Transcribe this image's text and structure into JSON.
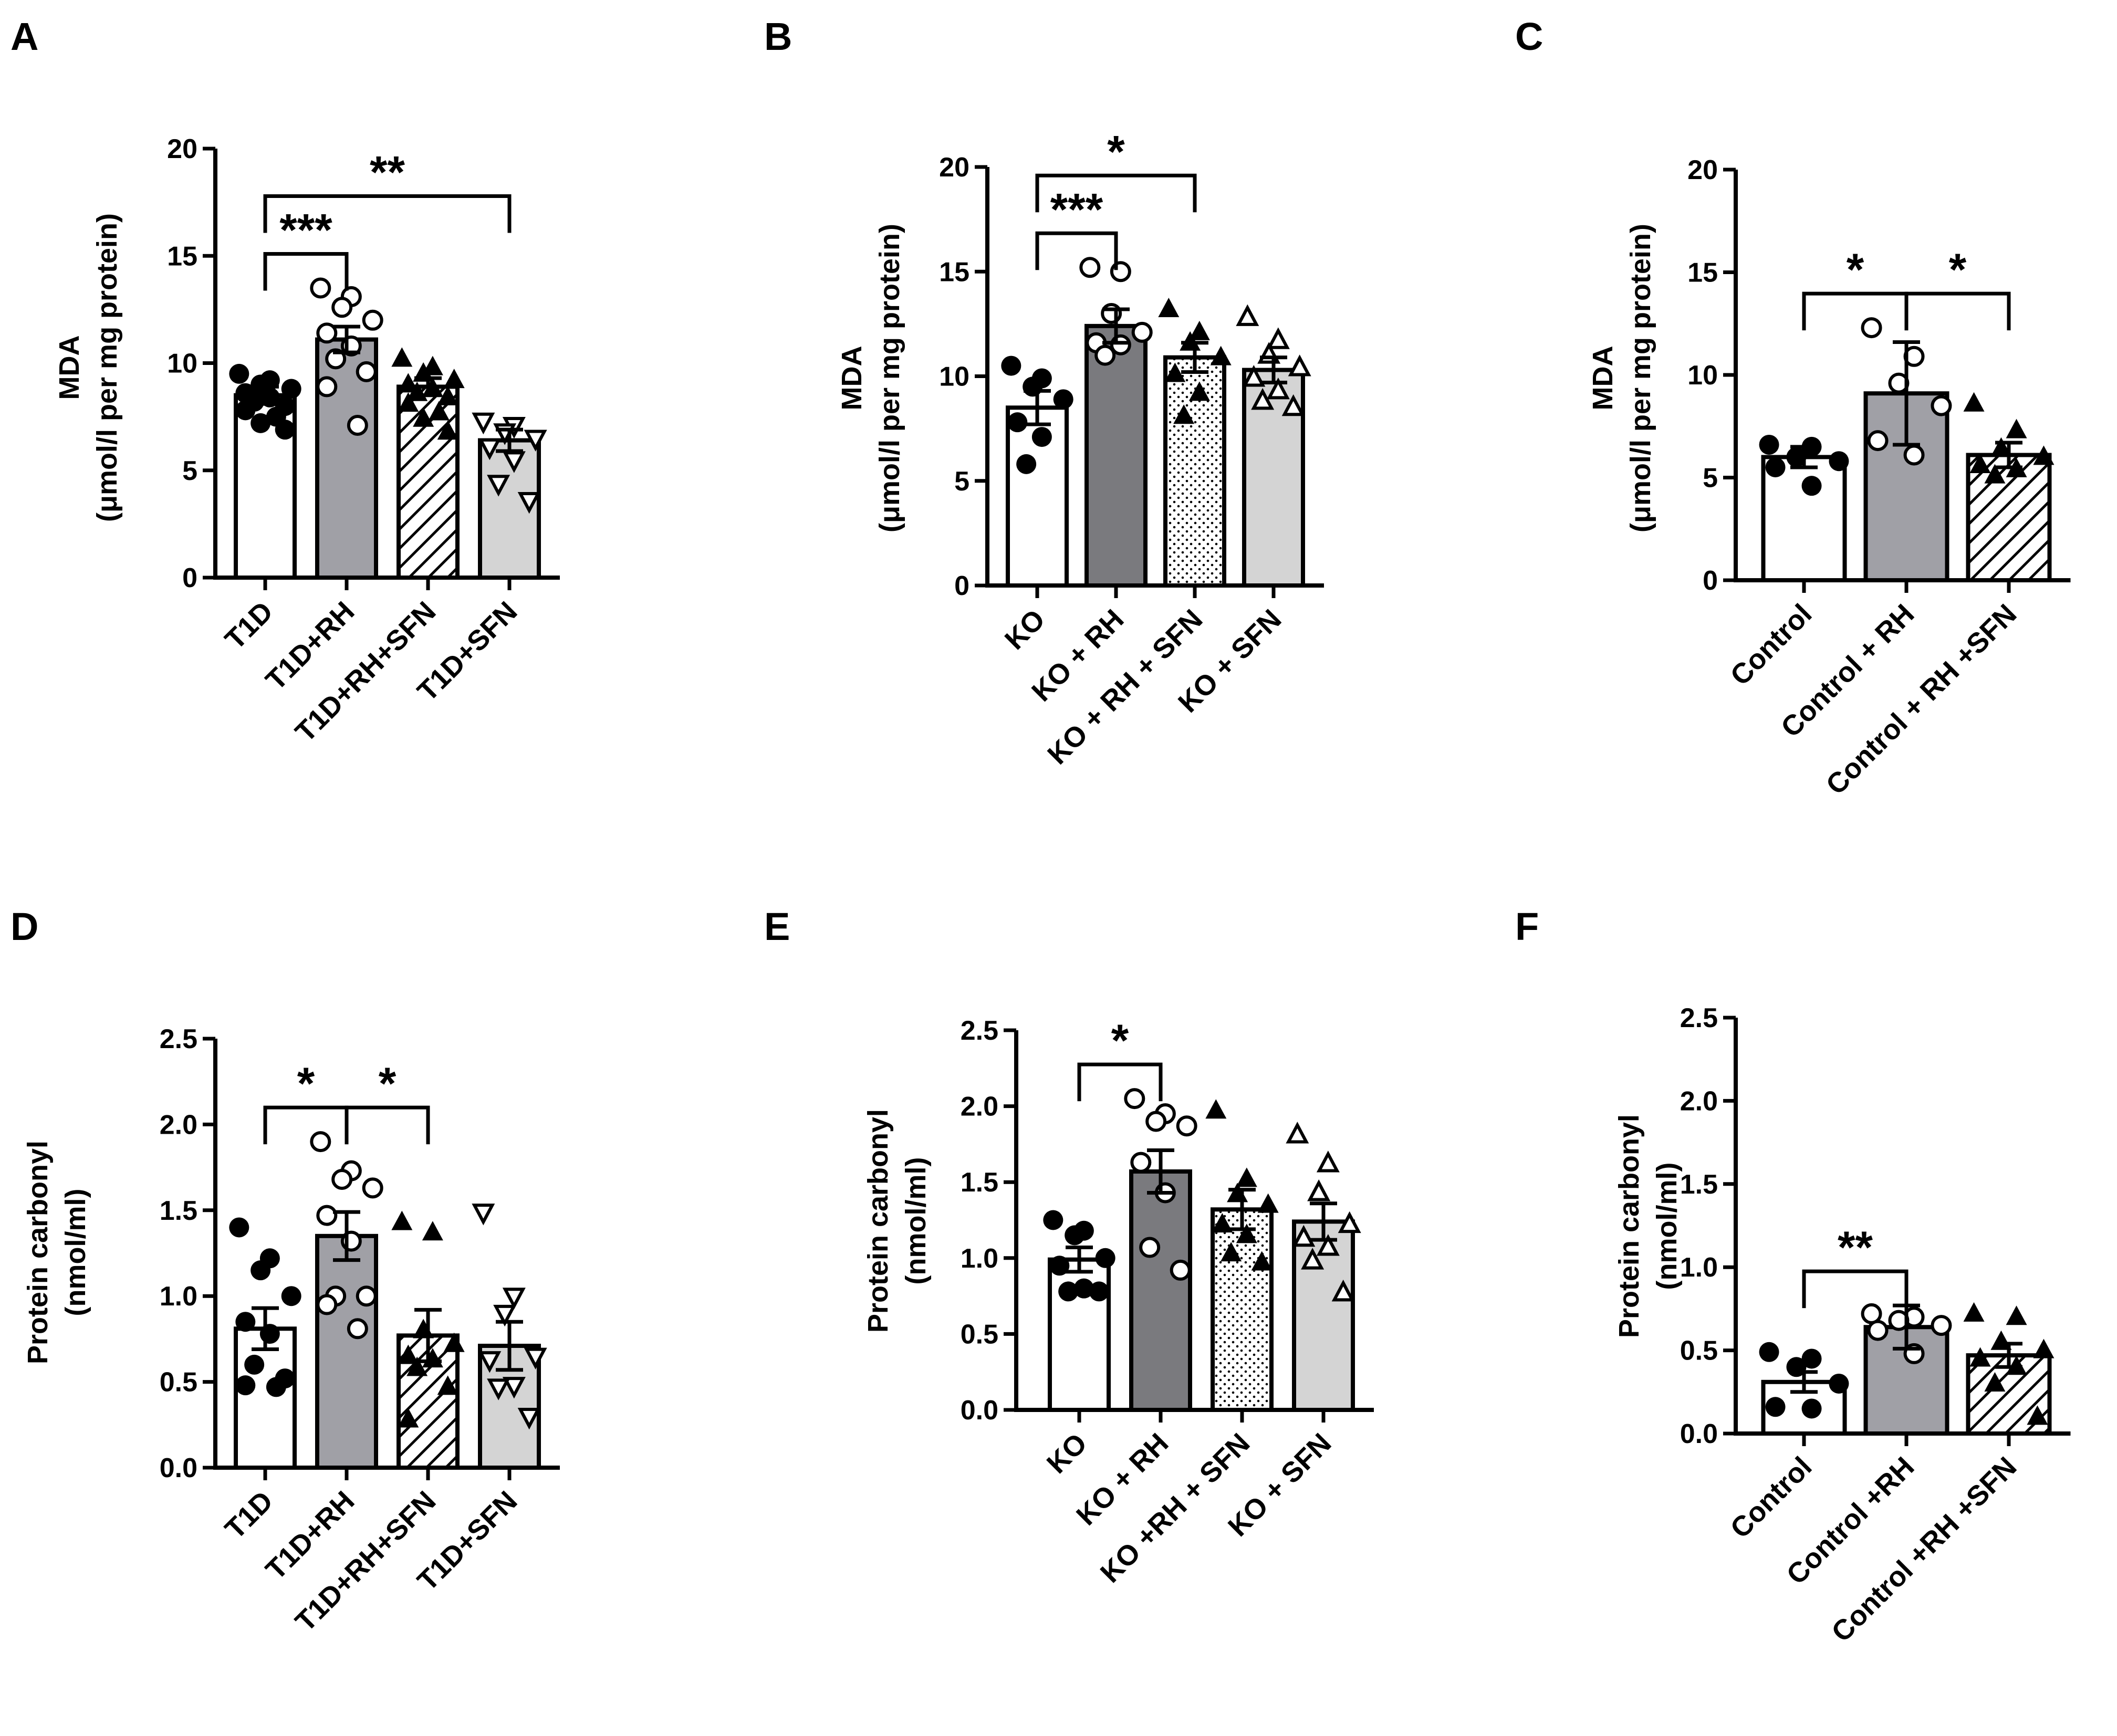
{
  "chart_data": [
    {
      "panel": "A",
      "type": "bar",
      "ylabel": "MDA",
      "ylabel2": "(μmol/l per mg protein)",
      "ylim": [
        0,
        20
      ],
      "yticks": [
        0,
        5,
        10,
        15,
        20
      ],
      "tick_labels": [
        "0",
        "5",
        "10",
        "15",
        "20"
      ],
      "categories": [
        "T1D",
        "T1D+RH",
        "T1D+RH+SFN",
        "T1D+SFN"
      ],
      "values": [
        8.5,
        11.1,
        8.9,
        6.4
      ],
      "sem": [
        0.4,
        0.6,
        0.4,
        0.5
      ],
      "fills": [
        "white",
        "gray",
        "hatch",
        "lightgray"
      ],
      "markers": [
        "filled-circle",
        "open-circle",
        "filled-triangle",
        "open-triangle-down"
      ],
      "points": [
        [
          9.5,
          9.2,
          9.0,
          8.8,
          8.6,
          8.4,
          8.2,
          8.0,
          7.8,
          7.5,
          7.2,
          6.9
        ],
        [
          13.5,
          13.1,
          12.6,
          12.0,
          11.4,
          10.8,
          10.2,
          9.6,
          8.9,
          7.1
        ],
        [
          10.2,
          9.8,
          9.5,
          9.2,
          9.0,
          8.8,
          8.6,
          8.4,
          8.1,
          7.7,
          7.4,
          6.8
        ],
        [
          7.3,
          7.1,
          6.8,
          6.5,
          6.1,
          5.5,
          4.4,
          3.6
        ]
      ],
      "brackets": [
        {
          "from": 0,
          "to": 1,
          "label": "***"
        },
        {
          "from": 0,
          "to": 3,
          "label": "**"
        }
      ]
    },
    {
      "panel": "B",
      "type": "bar",
      "ylabel": "MDA",
      "ylabel2": "(μmol/l per mg protein)",
      "ylim": [
        0,
        20
      ],
      "yticks": [
        0,
        5,
        10,
        15,
        20
      ],
      "tick_labels": [
        "0",
        "5",
        "10",
        "15",
        "20"
      ],
      "categories": [
        "KO",
        "KO + RH",
        "KO + RH + SFN",
        "KO + SFN"
      ],
      "values": [
        8.5,
        12.4,
        10.9,
        10.3
      ],
      "sem": [
        0.8,
        0.8,
        0.7,
        0.6
      ],
      "fills": [
        "white",
        "darkgray",
        "dotted",
        "lightgray"
      ],
      "markers": [
        "filled-circle",
        "open-circle",
        "filled-triangle",
        "open-triangle"
      ],
      "points": [
        [
          10.5,
          9.9,
          9.5,
          8.9,
          7.8,
          7.1,
          5.8
        ],
        [
          15.2,
          15.0,
          13.0,
          12.1,
          11.6,
          11.5,
          11.0
        ],
        [
          13.2,
          12.1,
          11.6,
          10.9,
          10.1,
          9.2,
          8.1
        ],
        [
          12.8,
          11.7,
          11.0,
          10.4,
          9.9,
          9.3,
          8.8,
          8.5
        ]
      ],
      "brackets": [
        {
          "from": 0,
          "to": 1,
          "label": "***"
        },
        {
          "from": 0,
          "to": 2,
          "label": "*"
        }
      ]
    },
    {
      "panel": "C",
      "type": "bar",
      "ylabel": "MDA",
      "ylabel2": "(μmol/l per mg protein)",
      "ylim": [
        0,
        20
      ],
      "yticks": [
        0,
        5,
        10,
        15,
        20
      ],
      "tick_labels": [
        "0",
        "5",
        "10",
        "15",
        "20"
      ],
      "categories": [
        "Control",
        "Control + RH",
        "Control + RH +SFN"
      ],
      "values": [
        6.0,
        9.1,
        6.1
      ],
      "sem": [
        0.5,
        2.5,
        0.6
      ],
      "fills": [
        "white",
        "gray",
        "hatch"
      ],
      "markers": [
        "filled-circle",
        "open-circle",
        "filled-triangle"
      ],
      "points": [
        [
          6.6,
          6.5,
          6.0,
          5.8,
          5.5,
          4.6
        ],
        [
          12.3,
          10.9,
          9.6,
          8.5,
          6.8,
          6.1
        ],
        [
          8.6,
          7.3,
          6.4,
          6.0,
          5.6,
          5.4,
          5.1
        ]
      ],
      "brackets": [
        {
          "from": 0,
          "to": 1,
          "label": "*"
        },
        {
          "from": 1,
          "to": 2,
          "label": "*"
        }
      ]
    },
    {
      "panel": "D",
      "type": "bar",
      "ylabel": "Protein carbonyl",
      "ylabel2": "(nmol/ml)",
      "ylim": [
        0,
        2.5
      ],
      "yticks": [
        0,
        0.5,
        1.0,
        1.5,
        2.0,
        2.5
      ],
      "tick_labels": [
        "0.0",
        "0.5",
        "1.0",
        "1.5",
        "2.0",
        "2.5"
      ],
      "categories": [
        "T1D",
        "T1D+RH",
        "T1D+RH+SFN",
        "T1D+SFN"
      ],
      "values": [
        0.81,
        1.35,
        0.77,
        0.71
      ],
      "sem": [
        0.12,
        0.14,
        0.15,
        0.14
      ],
      "fills": [
        "white",
        "gray",
        "hatch",
        "lightgray"
      ],
      "markers": [
        "filled-circle",
        "open-circle",
        "filled-triangle",
        "open-triangle-down"
      ],
      "points": [
        [
          1.4,
          1.22,
          1.15,
          1.0,
          0.85,
          0.78,
          0.6,
          0.52,
          0.48,
          0.47
        ],
        [
          1.9,
          1.73,
          1.68,
          1.63,
          1.47,
          1.32,
          1.0,
          1.0,
          0.95,
          0.81
        ],
        [
          1.43,
          1.37,
          0.8,
          0.72,
          0.65,
          0.63,
          0.58,
          0.47,
          0.28
        ],
        [
          1.49,
          1.0,
          0.9,
          0.65,
          0.63,
          0.48,
          0.47,
          0.3
        ]
      ],
      "brackets": [
        {
          "from": 0,
          "to": 1,
          "label": "*"
        },
        {
          "from": 1,
          "to": 2,
          "label": "*"
        }
      ]
    },
    {
      "panel": "E",
      "type": "bar",
      "ylabel": "Protein carbonyl",
      "ylabel2": "(nmol/ml)",
      "ylim": [
        0,
        2.5
      ],
      "yticks": [
        0,
        0.5,
        1.0,
        1.5,
        2.0,
        2.5
      ],
      "tick_labels": [
        "0.0",
        "0.5",
        "1.0",
        "1.5",
        "2.0",
        "2.5"
      ],
      "categories": [
        "KO",
        "KO + RH",
        "KO +RH + SFN",
        "KO + SFN"
      ],
      "values": [
        0.99,
        1.57,
        1.32,
        1.24
      ],
      "sem": [
        0.08,
        0.14,
        0.13,
        0.12
      ],
      "fills": [
        "white",
        "darkgray",
        "dotted",
        "lightgray"
      ],
      "markers": [
        "filled-circle",
        "open-circle",
        "filled-triangle",
        "open-triangle"
      ],
      "points": [
        [
          1.25,
          1.18,
          1.15,
          1.0,
          0.95,
          0.8,
          0.78,
          0.78
        ],
        [
          2.05,
          1.95,
          1.9,
          1.87,
          1.63,
          1.43,
          1.07,
          0.92
        ],
        [
          1.97,
          1.52,
          1.42,
          1.35,
          1.22,
          1.15,
          1.03,
          0.97
        ],
        [
          1.81,
          1.62,
          1.43,
          1.22,
          1.13,
          1.07,
          0.98,
          0.77
        ]
      ],
      "brackets": [
        {
          "from": 0,
          "to": 1,
          "label": "*"
        }
      ]
    },
    {
      "panel": "F",
      "type": "bar",
      "ylabel": "Protein carbonyl",
      "ylabel2": "(nmol/ml)",
      "ylim": [
        0,
        2.5
      ],
      "yticks": [
        0,
        0.5,
        1.0,
        1.5,
        2.0,
        2.5
      ],
      "tick_labels": [
        "0.0",
        "0.5",
        "1.0",
        "1.5",
        "2.0",
        "2.5"
      ],
      "categories": [
        "Control",
        "Control +RH",
        "Control +RH +SFN"
      ],
      "values": [
        0.31,
        0.64,
        0.47
      ],
      "sem": [
        0.06,
        0.13,
        0.07
      ],
      "fills": [
        "white",
        "gray",
        "hatch"
      ],
      "markers": [
        "filled-circle",
        "open-circle",
        "filled-triangle"
      ],
      "points": [
        [
          0.49,
          0.45,
          0.4,
          0.3,
          0.16,
          0.15
        ],
        [
          0.72,
          0.7,
          0.68,
          0.65,
          0.62,
          0.48
        ],
        [
          0.72,
          0.7,
          0.55,
          0.5,
          0.45,
          0.4,
          0.3,
          0.1
        ]
      ],
      "brackets": [
        {
          "from": 0,
          "to": 1,
          "label": "**"
        }
      ]
    }
  ]
}
